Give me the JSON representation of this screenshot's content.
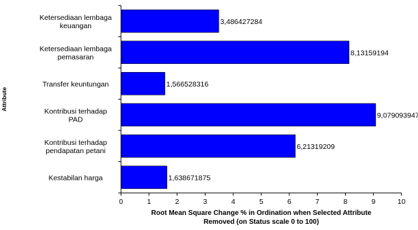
{
  "chart_data": {
    "type": "bar",
    "orientation": "horizontal",
    "categories": [
      [
        "Ketersediaan lembaga",
        "keuangan"
      ],
      [
        "Ketersediaan lembaga",
        "pemasaran"
      ],
      [
        "Transfer keuntungan"
      ],
      [
        "Kontribusi terhadap",
        "PAD"
      ],
      [
        "Kontribusi terhadap",
        "pendapatan petani"
      ],
      [
        "Kestabilan harga"
      ]
    ],
    "values": [
      3.486427284,
      8.13159194,
      1.566528316,
      9.079093947,
      6.21319209,
      1.638671875
    ],
    "value_labels": [
      "3,486427284",
      "8,13159194",
      "1,566528316",
      "9,079093947",
      "6,21319209",
      "1,638671875"
    ],
    "xlabel_lines": [
      "Root Mean Square Change % in Ordination when Selected Attribute",
      "Removed (on Status scale 0 to 100)"
    ],
    "ylabel": "Attribute",
    "xlim": [
      0,
      10
    ],
    "xticks": [
      "0",
      "1",
      "2",
      "3",
      "4",
      "5",
      "6",
      "7",
      "8",
      "9",
      "10"
    ],
    "grid": false,
    "legend": "none",
    "bar_color": "#0000ff",
    "bar_stroke": "#000000"
  }
}
